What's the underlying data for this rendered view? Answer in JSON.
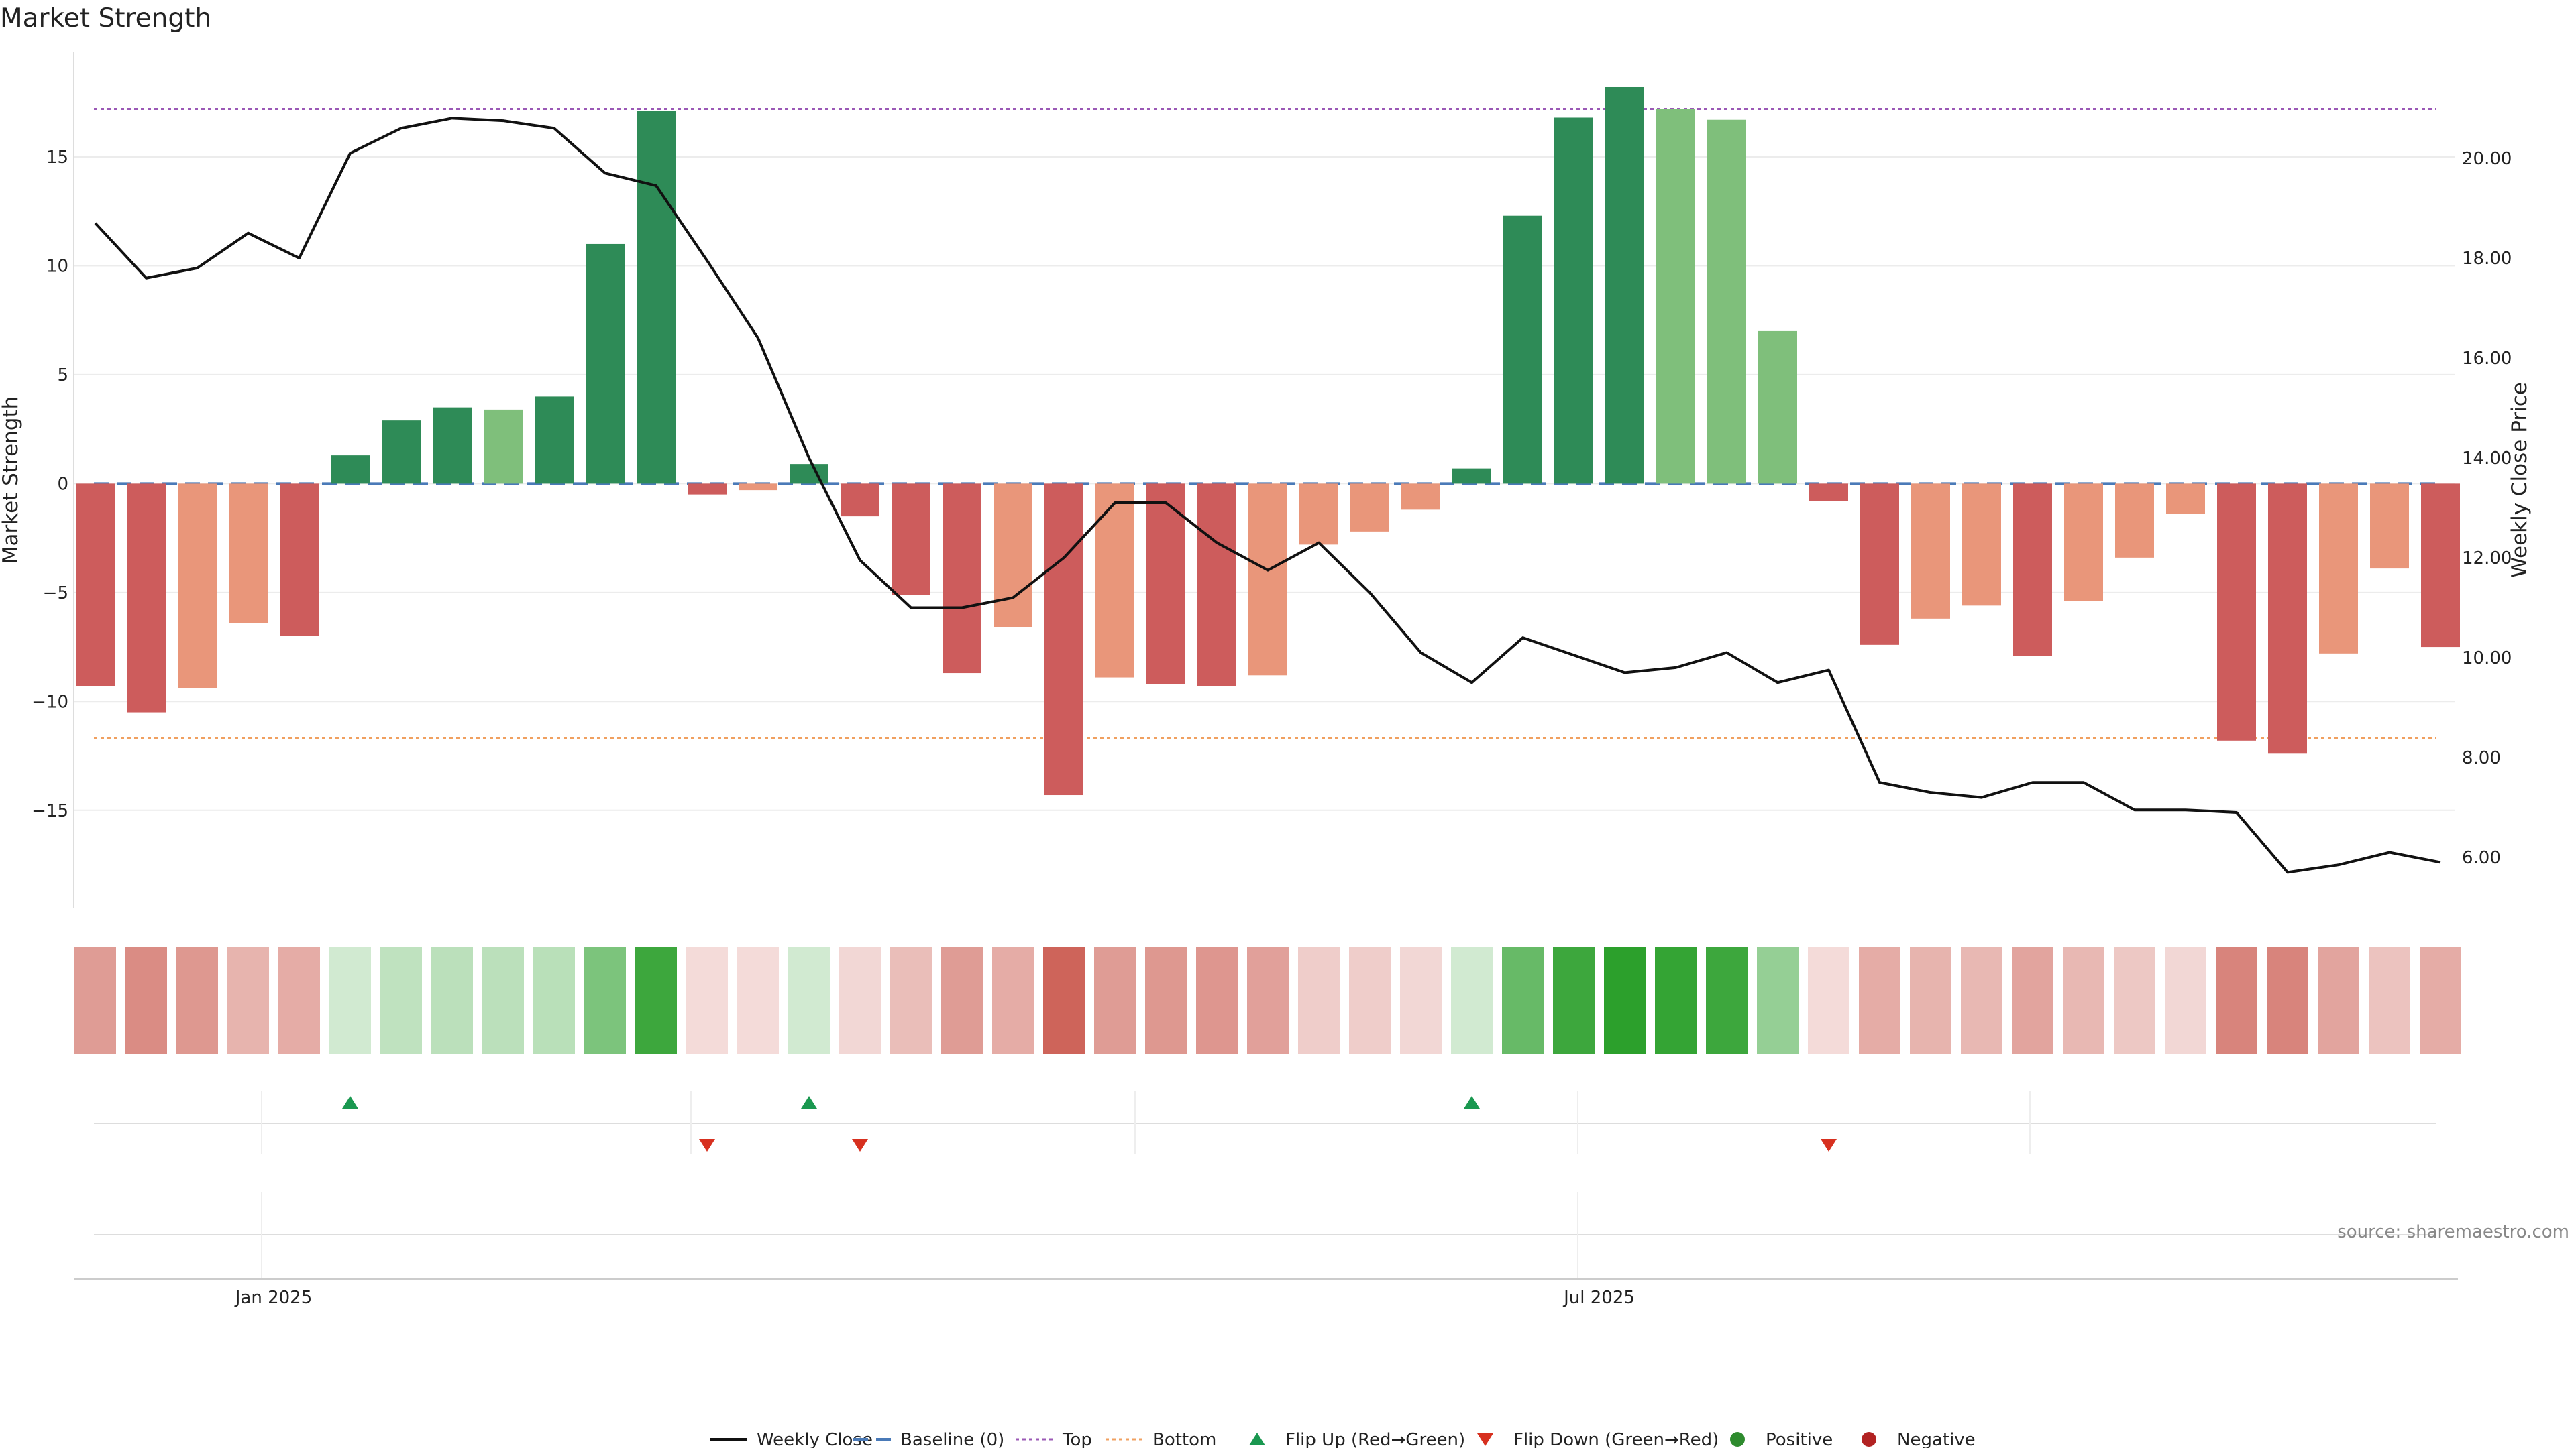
{
  "chart_data": {
    "type": "bar",
    "title": "Market Strength",
    "ylabel": "Market Strength",
    "y2label": "Weekly Close Price",
    "ylim": [
      -19.5,
      19.8
    ],
    "y2lim": [
      4.98,
      22.12
    ],
    "yticks": [
      -15,
      -10,
      -5,
      0,
      5,
      10,
      15
    ],
    "y2ticks": [
      6,
      8,
      10,
      12,
      14,
      16,
      18,
      20
    ],
    "ytick_labels": [
      "−15",
      "−10",
      "−5",
      "0",
      "5",
      "10",
      "15"
    ],
    "y2tick_labels": [
      "6.00",
      "8.00",
      "10.00",
      "12.00",
      "14.00",
      "16.00",
      "18.00",
      "20.00"
    ],
    "x_tick_labels": [
      {
        "label": "Jan 2025",
        "index": 3.5
      },
      {
        "label": "Jul 2025",
        "index": 29.5
      }
    ],
    "top_level": 17.2,
    "bottom_level": -11.7,
    "baseline": 0,
    "colors": {
      "pos_strong": "#2e8b57",
      "pos_light": "#7fbf7b",
      "neg_strong": "#cd5c5c",
      "neg_light": "#e9967a",
      "price_line": "#111111",
      "baseline": "#4a7ab8",
      "top": "#9b59b6",
      "bottom": "#f0a060",
      "flip_up": "#1a9850",
      "flip_down": "#d7301f",
      "positive_dot": "#2e8b2e",
      "negative_dot": "#b22222",
      "grid": "#ececec"
    },
    "bars": [
      {
        "v": -9.3,
        "c": "neg_strong"
      },
      {
        "v": -10.5,
        "c": "neg_strong"
      },
      {
        "v": -9.4,
        "c": "neg_light"
      },
      {
        "v": -6.4,
        "c": "neg_light"
      },
      {
        "v": -7.0,
        "c": "neg_strong"
      },
      {
        "v": 1.3,
        "c": "pos_strong"
      },
      {
        "v": 2.9,
        "c": "pos_strong"
      },
      {
        "v": 3.5,
        "c": "pos_strong"
      },
      {
        "v": 3.4,
        "c": "pos_light"
      },
      {
        "v": 4.0,
        "c": "pos_strong"
      },
      {
        "v": 11.0,
        "c": "pos_strong"
      },
      {
        "v": 17.1,
        "c": "pos_strong"
      },
      {
        "v": -0.5,
        "c": "neg_strong"
      },
      {
        "v": -0.3,
        "c": "neg_light"
      },
      {
        "v": 0.9,
        "c": "pos_strong"
      },
      {
        "v": -1.5,
        "c": "neg_strong"
      },
      {
        "v": -5.1,
        "c": "neg_strong"
      },
      {
        "v": -8.7,
        "c": "neg_strong"
      },
      {
        "v": -6.6,
        "c": "neg_light"
      },
      {
        "v": -14.3,
        "c": "neg_strong"
      },
      {
        "v": -8.9,
        "c": "neg_light"
      },
      {
        "v": -9.2,
        "c": "neg_strong"
      },
      {
        "v": -9.3,
        "c": "neg_strong"
      },
      {
        "v": -8.8,
        "c": "neg_light"
      },
      {
        "v": -2.8,
        "c": "neg_light"
      },
      {
        "v": -2.2,
        "c": "neg_light"
      },
      {
        "v": -1.2,
        "c": "neg_light"
      },
      {
        "v": 0.7,
        "c": "pos_strong"
      },
      {
        "v": 12.3,
        "c": "pos_strong"
      },
      {
        "v": 16.8,
        "c": "pos_strong"
      },
      {
        "v": 18.2,
        "c": "pos_strong"
      },
      {
        "v": 17.2,
        "c": "pos_light"
      },
      {
        "v": 16.7,
        "c": "pos_light"
      },
      {
        "v": 7.0,
        "c": "pos_light"
      },
      {
        "v": -0.8,
        "c": "neg_strong"
      },
      {
        "v": -7.4,
        "c": "neg_strong"
      },
      {
        "v": -6.2,
        "c": "neg_light"
      },
      {
        "v": -5.6,
        "c": "neg_light"
      },
      {
        "v": -7.9,
        "c": "neg_strong"
      },
      {
        "v": -5.4,
        "c": "neg_light"
      },
      {
        "v": -3.4,
        "c": "neg_light"
      },
      {
        "v": -1.4,
        "c": "neg_light"
      },
      {
        "v": -11.8,
        "c": "neg_strong"
      },
      {
        "v": -12.4,
        "c": "neg_strong"
      },
      {
        "v": -7.8,
        "c": "neg_light"
      },
      {
        "v": -3.9,
        "c": "neg_light"
      },
      {
        "v": -7.5,
        "c": "neg_strong"
      }
    ],
    "price": [
      18.7,
      17.6,
      17.8,
      18.5,
      18.0,
      20.1,
      20.6,
      20.8,
      20.75,
      20.6,
      19.7,
      19.45,
      17.95,
      16.4,
      14.0,
      11.95,
      11.0,
      11.0,
      11.2,
      12.0,
      13.1,
      13.1,
      12.3,
      11.75,
      12.3,
      11.3,
      10.1,
      9.5,
      10.4,
      10.05,
      9.7,
      9.8,
      10.1,
      9.5,
      9.75,
      7.5,
      7.3,
      7.2,
      7.5,
      7.5,
      6.95,
      6.95,
      6.9,
      5.7,
      5.85,
      6.1,
      5.9
    ],
    "heat_strip": [
      {
        "hue": "neg",
        "alpha": 0.5
      },
      {
        "hue": "neg",
        "alpha": 0.58
      },
      {
        "hue": "neg",
        "alpha": 0.52
      },
      {
        "hue": "neg",
        "alpha": 0.38
      },
      {
        "hue": "neg",
        "alpha": 0.42
      },
      {
        "hue": "pos",
        "alpha": 0.22
      },
      {
        "hue": "pos",
        "alpha": 0.3
      },
      {
        "hue": "pos",
        "alpha": 0.32
      },
      {
        "hue": "pos",
        "alpha": 0.32
      },
      {
        "hue": "pos",
        "alpha": 0.33
      },
      {
        "hue": "pos",
        "alpha": 0.62
      },
      {
        "hue": "pos",
        "alpha": 0.92
      },
      {
        "hue": "neg",
        "alpha": 0.18
      },
      {
        "hue": "neg",
        "alpha": 0.18
      },
      {
        "hue": "pos",
        "alpha": 0.22
      },
      {
        "hue": "neg",
        "alpha": 0.2
      },
      {
        "hue": "neg",
        "alpha": 0.33
      },
      {
        "hue": "neg",
        "alpha": 0.5
      },
      {
        "hue": "neg",
        "alpha": 0.42
      },
      {
        "hue": "neg",
        "alpha": 0.78
      },
      {
        "hue": "neg",
        "alpha": 0.5
      },
      {
        "hue": "neg",
        "alpha": 0.52
      },
      {
        "hue": "neg",
        "alpha": 0.53
      },
      {
        "hue": "neg",
        "alpha": 0.48
      },
      {
        "hue": "neg",
        "alpha": 0.25
      },
      {
        "hue": "neg",
        "alpha": 0.25
      },
      {
        "hue": "neg",
        "alpha": 0.2
      },
      {
        "hue": "pos",
        "alpha": 0.22
      },
      {
        "hue": "pos",
        "alpha": 0.72
      },
      {
        "hue": "pos",
        "alpha": 0.92
      },
      {
        "hue": "pos",
        "alpha": 1.0
      },
      {
        "hue": "pos",
        "alpha": 0.96
      },
      {
        "hue": "pos",
        "alpha": 0.92
      },
      {
        "hue": "pos",
        "alpha": 0.5
      },
      {
        "hue": "neg",
        "alpha": 0.18
      },
      {
        "hue": "neg",
        "alpha": 0.42
      },
      {
        "hue": "neg",
        "alpha": 0.38
      },
      {
        "hue": "neg",
        "alpha": 0.36
      },
      {
        "hue": "neg",
        "alpha": 0.46
      },
      {
        "hue": "neg",
        "alpha": 0.36
      },
      {
        "hue": "neg",
        "alpha": 0.28
      },
      {
        "hue": "neg",
        "alpha": 0.2
      },
      {
        "hue": "neg",
        "alpha": 0.62
      },
      {
        "hue": "neg",
        "alpha": 0.62
      },
      {
        "hue": "neg",
        "alpha": 0.46
      },
      {
        "hue": "neg",
        "alpha": 0.3
      },
      {
        "hue": "neg",
        "alpha": 0.42
      }
    ],
    "flip_up_indices": [
      5,
      14,
      27
    ],
    "flip_down_indices": [
      12,
      15,
      34
    ],
    "legend": [
      {
        "label": "Weekly Close",
        "symbol": "line"
      },
      {
        "label": "Baseline (0)",
        "symbol": "dash"
      },
      {
        "label": "Top",
        "symbol": "dot-purple"
      },
      {
        "label": "Bottom",
        "symbol": "dot-orange"
      },
      {
        "label": "Flip Up (Red→Green)",
        "symbol": "tri-up"
      },
      {
        "label": "Flip Down (Green→Red)",
        "symbol": "tri-down"
      },
      {
        "label": "Positive",
        "symbol": "dot-green"
      },
      {
        "label": "Negative",
        "symbol": "dot-red"
      }
    ],
    "legend_position": "bottom-center",
    "source": "source: sharemaestro.com"
  }
}
